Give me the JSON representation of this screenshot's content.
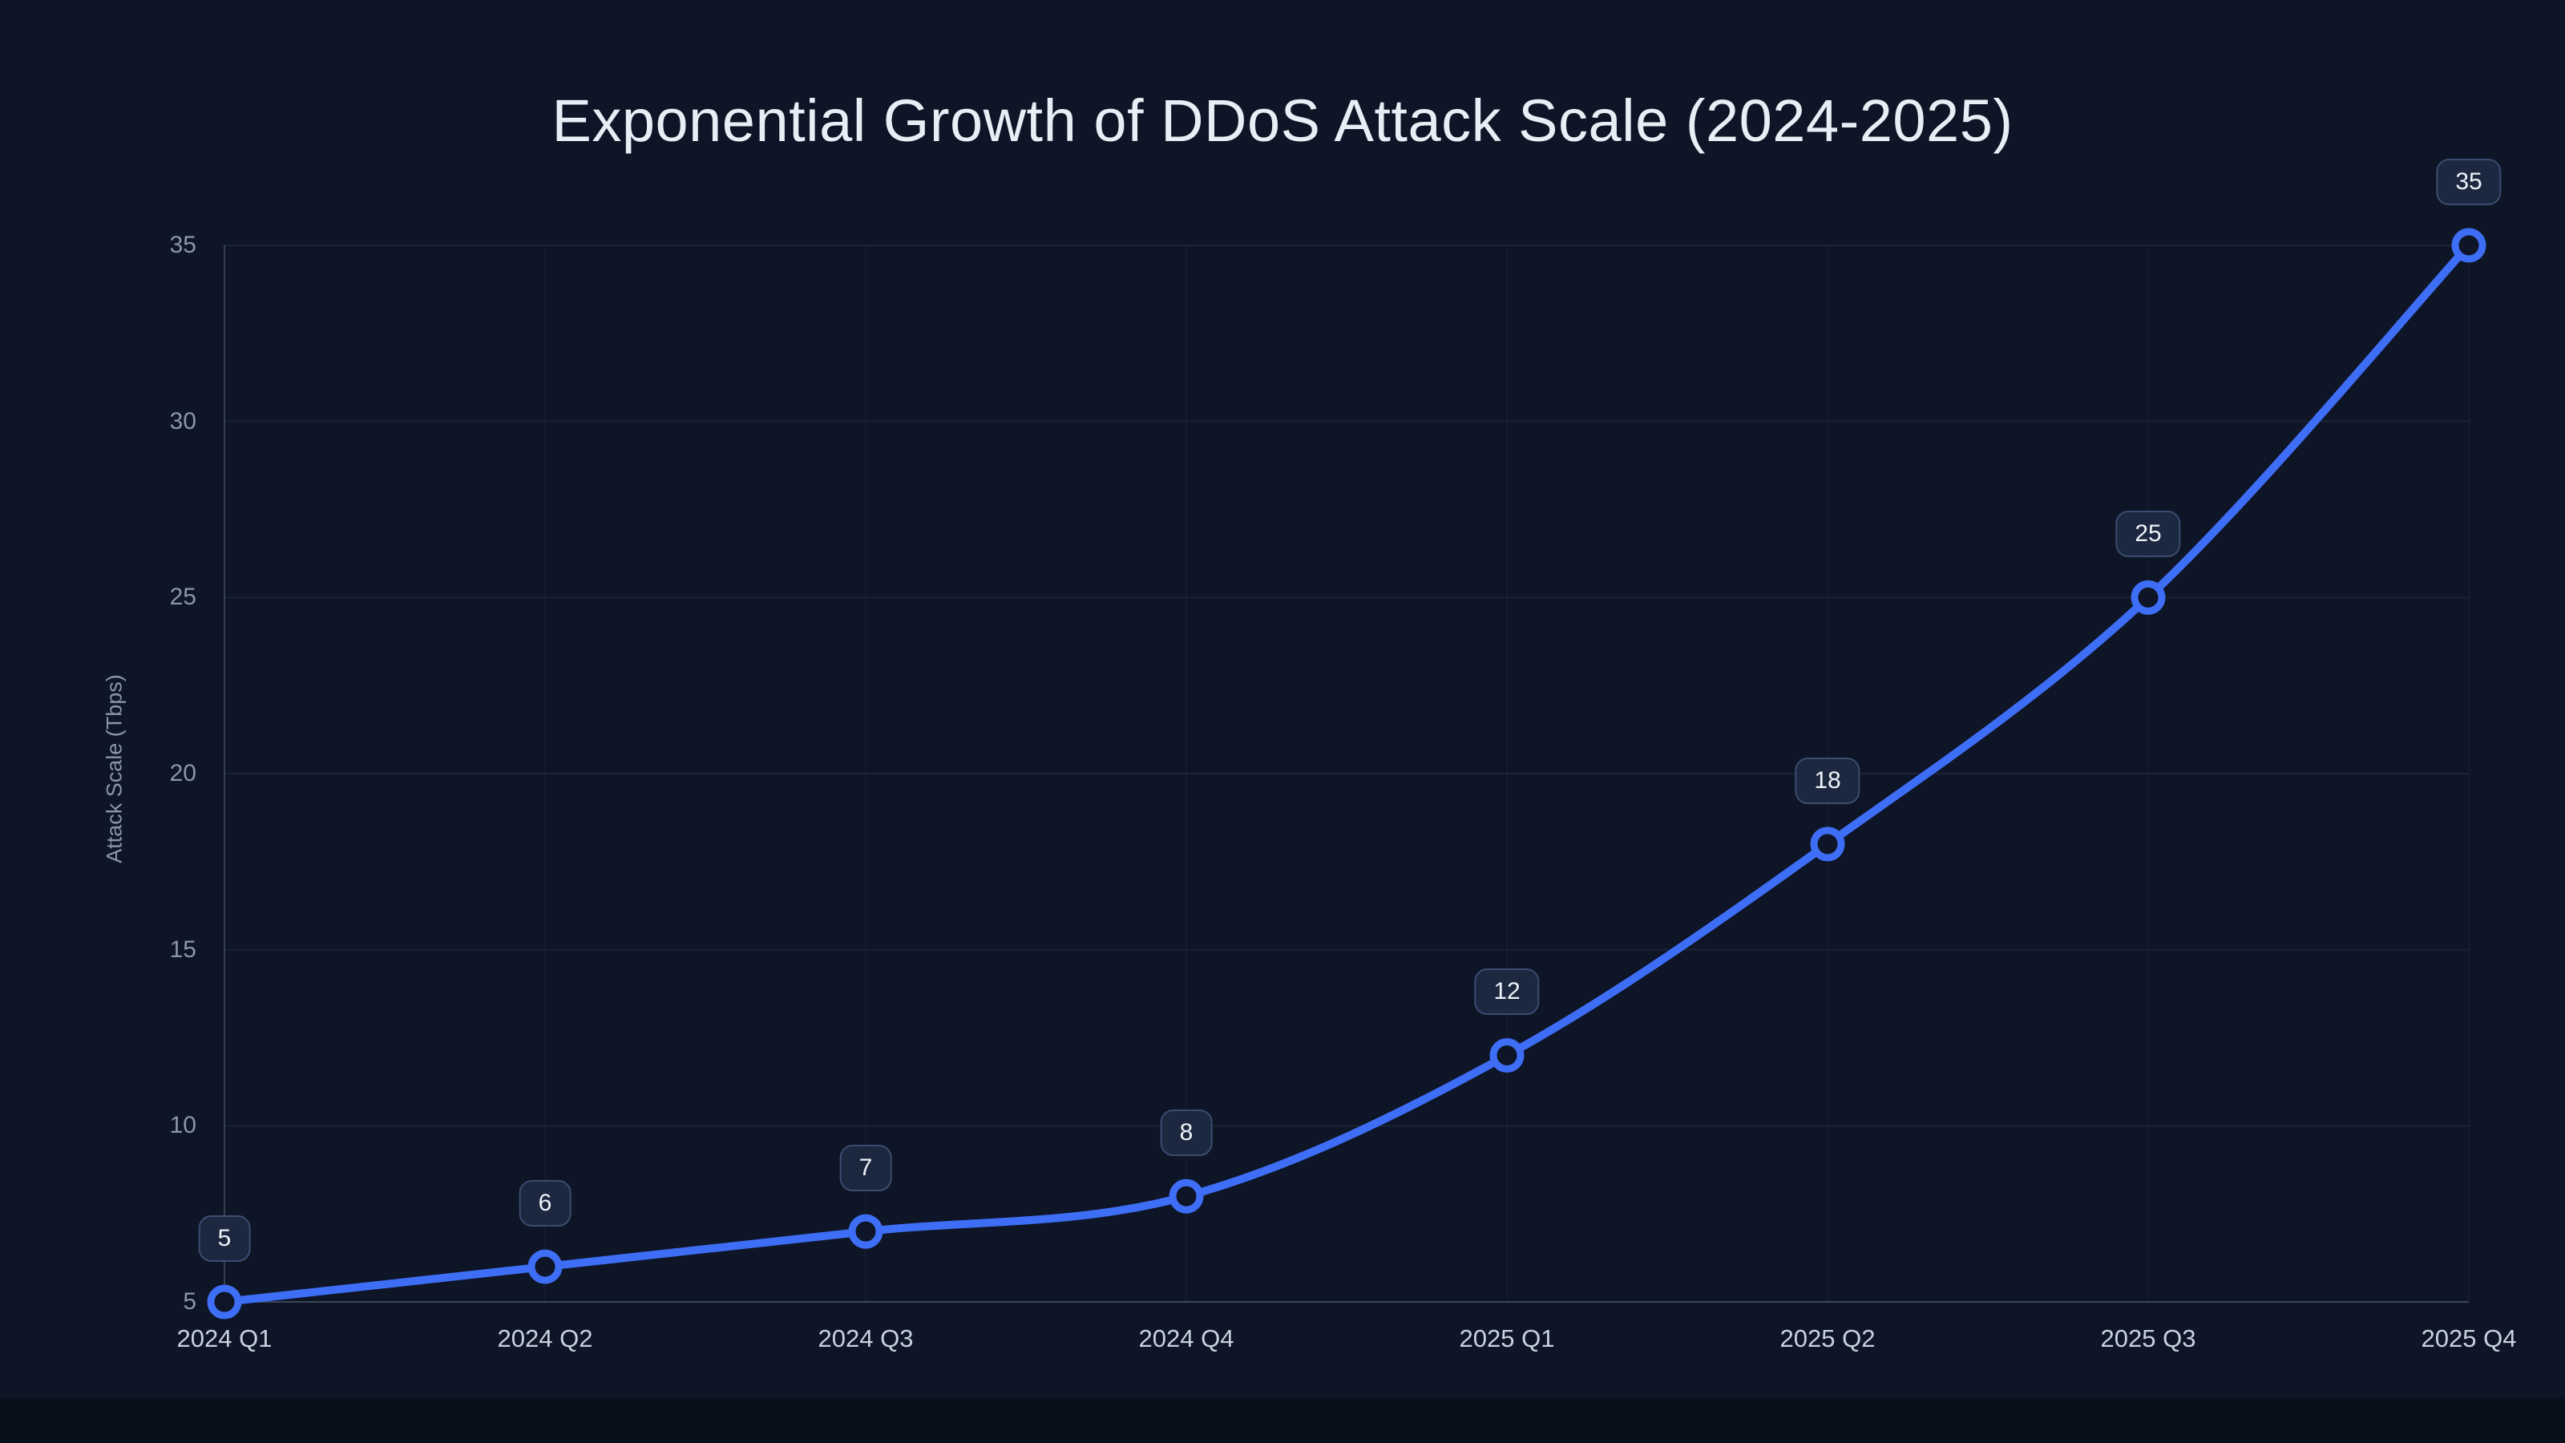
{
  "chart_data": {
    "type": "line",
    "title": "Exponential Growth of DDoS Attack Scale (2024-2025)",
    "categories": [
      "2024 Q1",
      "2024 Q2",
      "2024 Q3",
      "2024 Q4",
      "2025 Q1",
      "2025 Q2",
      "2025 Q3",
      "2025 Q4"
    ],
    "values": [
      5,
      6,
      7,
      8,
      12,
      18,
      25,
      35
    ],
    "data_labels": [
      "5",
      "6",
      "7",
      "8",
      "12",
      "18",
      "25",
      "35"
    ],
    "xlabel": "",
    "ylabel": "Attack Scale (Tbps)",
    "ylim": [
      5,
      35
    ],
    "yticks": [
      5,
      10,
      15,
      20,
      25,
      30,
      35
    ],
    "grid": true,
    "legend": "none",
    "colors": {
      "background": "#0d1526",
      "footer": "#0a0f1c",
      "line": "#3e6ef6",
      "marker_fill": "#0d1526",
      "grid": "rgba(148,163,184,0.10)",
      "grid_vertical": "rgba(148,163,184,0.05)",
      "axis": "rgba(148,163,184,0.28)",
      "badge_bg": "#1c2840",
      "badge_border": "#3b4c70",
      "badge_text": "#eef2f8",
      "title_text": "#e9edf5",
      "tick_text": "#8a96ab",
      "x_tick_text": "#c9d2e0"
    }
  }
}
